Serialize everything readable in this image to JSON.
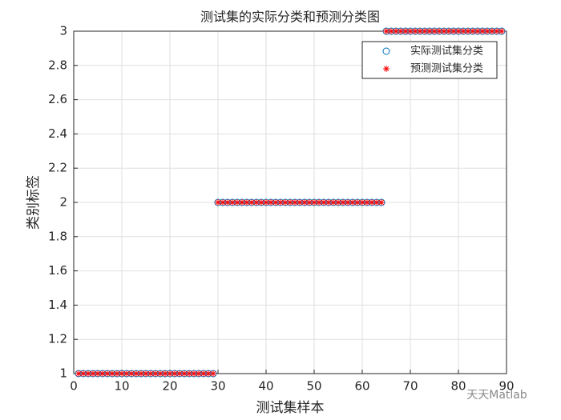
{
  "chart_data": {
    "type": "scatter",
    "title": "测试集的实际分类和预测分类图",
    "xlabel": "测试集样本",
    "ylabel": "类别标签",
    "watermark": "天天Matlab",
    "x": [
      1,
      2,
      3,
      4,
      5,
      6,
      7,
      8,
      9,
      10,
      11,
      12,
      13,
      14,
      15,
      16,
      17,
      18,
      19,
      20,
      21,
      22,
      23,
      24,
      25,
      26,
      27,
      28,
      29,
      30,
      31,
      32,
      33,
      34,
      35,
      36,
      37,
      38,
      39,
      40,
      41,
      42,
      43,
      44,
      45,
      46,
      47,
      48,
      49,
      50,
      51,
      52,
      53,
      54,
      55,
      56,
      57,
      58,
      59,
      60,
      61,
      62,
      63,
      64,
      65,
      66,
      67,
      68,
      69,
      70,
      71,
      72,
      73,
      74,
      75,
      76,
      77,
      78,
      79,
      80,
      81,
      82,
      83,
      84,
      85,
      86,
      87,
      88,
      89
    ],
    "series": [
      {
        "name": "实际测试集分类",
        "color": "#0072bd",
        "marker": "circle",
        "values": [
          1,
          1,
          1,
          1,
          1,
          1,
          1,
          1,
          1,
          1,
          1,
          1,
          1,
          1,
          1,
          1,
          1,
          1,
          1,
          1,
          1,
          1,
          1,
          1,
          1,
          1,
          1,
          1,
          1,
          2,
          2,
          2,
          2,
          2,
          2,
          2,
          2,
          2,
          2,
          2,
          2,
          2,
          2,
          2,
          2,
          2,
          2,
          2,
          2,
          2,
          2,
          2,
          2,
          2,
          2,
          2,
          2,
          2,
          2,
          2,
          2,
          2,
          2,
          2,
          3,
          3,
          3,
          3,
          3,
          3,
          3,
          3,
          3,
          3,
          3,
          3,
          3,
          3,
          3,
          3,
          3,
          3,
          3,
          3,
          3,
          3,
          3,
          3,
          3
        ]
      },
      {
        "name": "预测测试集分类",
        "color": "#ff0000",
        "marker": "asterisk",
        "values": [
          1,
          1,
          1,
          1,
          1,
          1,
          1,
          1,
          1,
          1,
          1,
          1,
          1,
          1,
          1,
          1,
          1,
          1,
          1,
          1,
          1,
          1,
          1,
          1,
          1,
          1,
          1,
          1,
          1,
          2,
          2,
          2,
          2,
          2,
          2,
          2,
          2,
          2,
          2,
          2,
          2,
          2,
          2,
          2,
          2,
          2,
          2,
          2,
          2,
          2,
          2,
          2,
          2,
          2,
          2,
          2,
          2,
          2,
          2,
          2,
          2,
          2,
          2,
          2,
          3,
          3,
          3,
          3,
          3,
          3,
          3,
          3,
          3,
          3,
          3,
          3,
          3,
          3,
          3,
          3,
          3,
          3,
          3,
          3,
          3,
          3,
          3,
          3,
          3
        ]
      }
    ],
    "xlim": [
      0,
      90
    ],
    "xticks": [
      0,
      10,
      20,
      30,
      40,
      50,
      60,
      70,
      80,
      90
    ],
    "ylim": [
      1,
      3
    ],
    "yticks": [
      1,
      1.2,
      1.4,
      1.6,
      1.8,
      2,
      2.2,
      2.4,
      2.6,
      2.8,
      3
    ],
    "grid": true,
    "legend": "top-right"
  }
}
